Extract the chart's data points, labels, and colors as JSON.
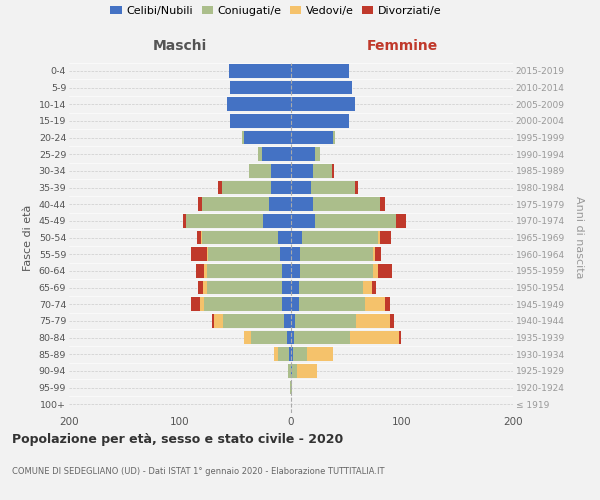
{
  "age_groups": [
    "100+",
    "95-99",
    "90-94",
    "85-89",
    "80-84",
    "75-79",
    "70-74",
    "65-69",
    "60-64",
    "55-59",
    "50-54",
    "45-49",
    "40-44",
    "35-39",
    "30-34",
    "25-29",
    "20-24",
    "15-19",
    "10-14",
    "5-9",
    "0-4"
  ],
  "birth_years": [
    "≤ 1919",
    "1920-1924",
    "1925-1929",
    "1930-1934",
    "1935-1939",
    "1940-1944",
    "1945-1949",
    "1950-1954",
    "1955-1959",
    "1960-1964",
    "1965-1969",
    "1970-1974",
    "1975-1979",
    "1980-1984",
    "1985-1989",
    "1990-1994",
    "1995-1999",
    "2000-2004",
    "2005-2009",
    "2010-2014",
    "2015-2019"
  ],
  "maschi_celibi": [
    0,
    0,
    0,
    2,
    4,
    6,
    8,
    8,
    8,
    10,
    12,
    25,
    20,
    18,
    18,
    26,
    42,
    55,
    58,
    55,
    56
  ],
  "maschi_coniugati": [
    0,
    1,
    3,
    10,
    32,
    55,
    70,
    68,
    68,
    65,
    68,
    70,
    60,
    44,
    20,
    4,
    2,
    0,
    0,
    0,
    0
  ],
  "maschi_vedovi": [
    0,
    0,
    0,
    3,
    6,
    8,
    4,
    3,
    2,
    1,
    1,
    0,
    0,
    0,
    0,
    0,
    0,
    0,
    0,
    0,
    0
  ],
  "maschi_divorziati": [
    0,
    0,
    0,
    0,
    0,
    2,
    8,
    5,
    8,
    14,
    4,
    2,
    4,
    4,
    0,
    0,
    0,
    0,
    0,
    0,
    0
  ],
  "femmine_nubili": [
    0,
    0,
    1,
    2,
    3,
    4,
    7,
    7,
    8,
    8,
    10,
    22,
    20,
    18,
    20,
    22,
    38,
    52,
    58,
    55,
    52
  ],
  "femmine_coniugate": [
    0,
    1,
    4,
    12,
    50,
    55,
    60,
    58,
    66,
    66,
    68,
    73,
    60,
    40,
    17,
    4,
    2,
    0,
    0,
    0,
    0
  ],
  "femmine_vedove": [
    0,
    0,
    18,
    24,
    44,
    30,
    18,
    8,
    4,
    2,
    2,
    0,
    0,
    0,
    0,
    0,
    0,
    0,
    0,
    0,
    0
  ],
  "femmine_divorziate": [
    0,
    0,
    0,
    0,
    2,
    4,
    4,
    4,
    13,
    5,
    10,
    9,
    5,
    2,
    2,
    0,
    0,
    0,
    0,
    0,
    0
  ],
  "color_celibi": "#4472C4",
  "color_coniugati": "#ABBE8B",
  "color_vedovi": "#F5C26B",
  "color_divorziati": "#C0392B",
  "title_main": "Popolazione per età, sesso e stato civile - 2020",
  "title_sub": "COMUNE DI SEDEGLIANO (UD) - Dati ISTAT 1° gennaio 2020 - Elaborazione TUTTITALIA.IT",
  "header_maschi": "Maschi",
  "header_femmine": "Femmine",
  "ylabel_left": "Fasce di età",
  "ylabel_right": "Anni di nascita",
  "xlim": 200,
  "background_color": "#f2f2f2",
  "legend_labels": [
    "Celibi/Nubili",
    "Coniugati/e",
    "Vedovi/e",
    "Divorziati/e"
  ]
}
